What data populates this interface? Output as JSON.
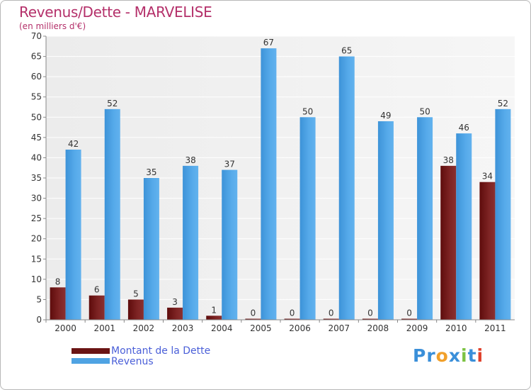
{
  "title": "Revenus/Dette - MARVELISE",
  "subtitle": "(en milliers d'€)",
  "logo": {
    "text": "Proxiti",
    "letters": [
      {
        "ch": "P",
        "color": "#3a8fd9"
      },
      {
        "ch": "r",
        "color": "#3a8fd9"
      },
      {
        "ch": "o",
        "color": "#f1a02a"
      },
      {
        "ch": "x",
        "color": "#3a8fd9"
      },
      {
        "ch": "i",
        "color": "#7cc242"
      },
      {
        "ch": "t",
        "color": "#3a8fd9"
      },
      {
        "ch": "i",
        "color": "#e0412c"
      }
    ]
  },
  "chart_data": {
    "type": "bar",
    "title": "Revenus/Dette - MARVELISE",
    "ylabel": "(en milliers d'€)",
    "xlabel": "",
    "ylim": [
      0,
      70
    ],
    "yticks": [
      0,
      5,
      10,
      15,
      20,
      25,
      30,
      35,
      40,
      45,
      50,
      55,
      60,
      65,
      70
    ],
    "grid": true,
    "legend_position": "bottom-left",
    "categories": [
      "2000",
      "2001",
      "2002",
      "2003",
      "2004",
      "2005",
      "2006",
      "2007",
      "2008",
      "2009",
      "2010",
      "2011"
    ],
    "series": [
      {
        "name": "Montant de la Dette",
        "color": "#7a1f1f",
        "values": [
          8,
          6,
          5,
          3,
          1,
          0,
          0,
          0,
          0,
          0,
          38,
          34
        ]
      },
      {
        "name": "Revenus",
        "color": "#4fa3e3",
        "values": [
          42,
          52,
          35,
          38,
          37,
          67,
          50,
          65,
          49,
          50,
          46,
          52
        ]
      }
    ]
  }
}
